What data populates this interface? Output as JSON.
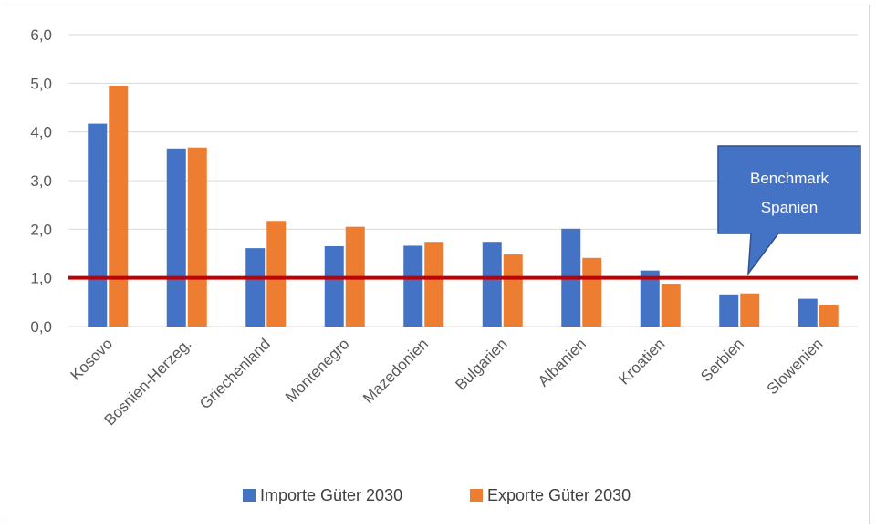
{
  "chart_data": {
    "type": "bar",
    "categories": [
      "Kosovo",
      "Bosnien-Herzeg.",
      "Griechenland",
      "Montenegro",
      "Mazedonien",
      "Bulgarien",
      "Albanien",
      "Kroatien",
      "Serbien",
      "Slowenien"
    ],
    "series": [
      {
        "name": "Importe Güter 2030",
        "color": "#4472c4",
        "values": [
          4.17,
          3.66,
          1.61,
          1.65,
          1.66,
          1.74,
          2.01,
          1.15,
          0.66,
          0.57
        ]
      },
      {
        "name": "Exporte Güter 2030",
        "color": "#ed7d31",
        "values": [
          4.95,
          3.68,
          2.17,
          2.05,
          1.74,
          1.48,
          1.41,
          0.88,
          0.68,
          0.45
        ]
      }
    ],
    "yticks": [
      "0,0",
      "1,0",
      "2,0",
      "3,0",
      "4,0",
      "5,0",
      "6,0"
    ],
    "ylim": [
      0,
      6
    ],
    "grid": true,
    "legend_position": "bottom",
    "reference_line": {
      "value": 1.0,
      "color": "#c00000"
    },
    "callout": {
      "line1": "Benchmark",
      "line2": "Spanien",
      "color": "#4472c4"
    }
  }
}
